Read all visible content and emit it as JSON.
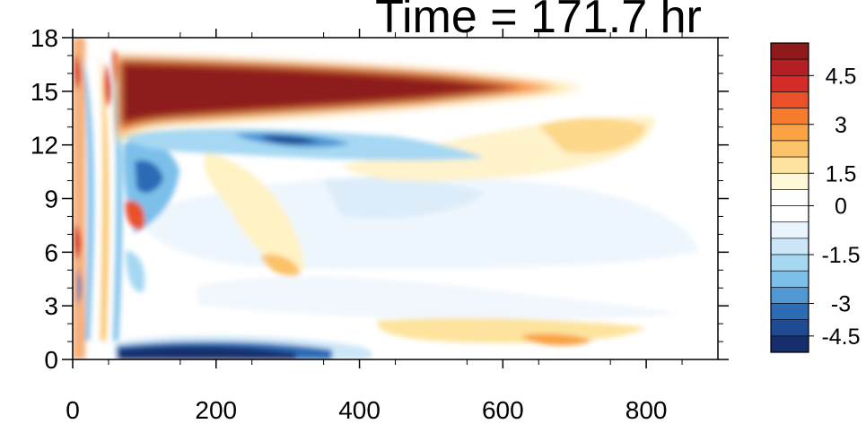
{
  "chart_data": {
    "type": "heatmap",
    "title": "Time = 171.7 hr",
    "xlabel": "",
    "ylabel": "",
    "xlim": [
      0,
      900
    ],
    "ylim": [
      0,
      18
    ],
    "x_ticks": [
      0,
      200,
      400,
      600,
      800
    ],
    "y_ticks": [
      0,
      3,
      6,
      9,
      12,
      15,
      18
    ],
    "colorbar": {
      "range": [
        -5.5,
        5.5
      ],
      "tick_labels": [
        "4.5",
        "3",
        "1.5",
        "0",
        "-1.5",
        "-3",
        "-4.5"
      ],
      "colors": [
        "#8e1a1a",
        "#b21f24",
        "#d52b29",
        "#e8512a",
        "#f57c2c",
        "#f9a345",
        "#fbc267",
        "#fde39d",
        "#fff8d8",
        "#ffffff",
        "#ffffff",
        "#eaf4fc",
        "#cde6f7",
        "#a6d8f3",
        "#7cc0ea",
        "#4f98d4",
        "#2c6cb6",
        "#1f4b94",
        "#162e6c"
      ]
    },
    "features": [
      {
        "x": [
          60,
          600
        ],
        "y": [
          13,
          16.5
        ],
        "value": 5.5
      },
      {
        "x": [
          600,
          720
        ],
        "y": [
          14.5,
          15.5
        ],
        "value": 2.5
      },
      {
        "x": [
          60,
          380
        ],
        "y": [
          0,
          0.9
        ],
        "value": -5.0
      },
      {
        "x": [
          100,
          420
        ],
        "y": [
          12,
          13
        ],
        "value": -3.0
      },
      {
        "x": [
          420,
          760
        ],
        "y": [
          11,
          12.5
        ],
        "value": 1.5
      },
      {
        "x": [
          420,
          760
        ],
        "y": [
          0.8,
          2.0
        ],
        "value": 1.0
      },
      {
        "x": [
          0,
          60
        ],
        "y": [
          0,
          18
        ],
        "value": 4.5
      }
    ]
  }
}
